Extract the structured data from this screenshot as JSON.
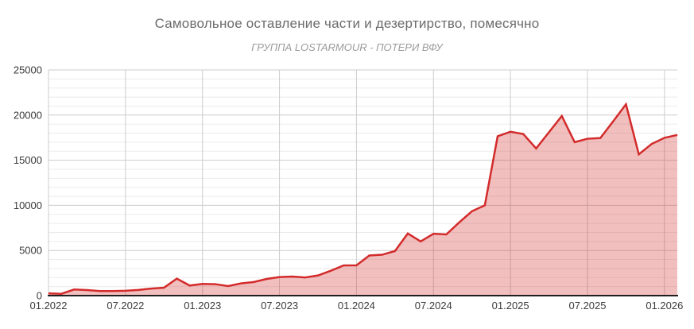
{
  "chart_data": {
    "type": "area",
    "title": "Самовольное оставление части и дезертирство, помесячно",
    "subtitle": "ГРУППА LOSTARMOUR - ПОТЕРИ ВФУ",
    "x": [
      "01.2022",
      "02.2022",
      "03.2022",
      "04.2022",
      "05.2022",
      "06.2022",
      "07.2022",
      "08.2022",
      "09.2022",
      "10.2022",
      "11.2022",
      "12.2022",
      "01.2023",
      "02.2023",
      "03.2023",
      "04.2023",
      "05.2023",
      "06.2023",
      "07.2023",
      "08.2023",
      "09.2023",
      "10.2023",
      "11.2023",
      "12.2023",
      "01.2024",
      "02.2024",
      "03.2024",
      "04.2024",
      "05.2024",
      "06.2024",
      "07.2024",
      "08.2024",
      "09.2024",
      "10.2024",
      "11.2024",
      "12.2024",
      "01.2025",
      "02.2025",
      "03.2025",
      "04.2025",
      "05.2025",
      "06.2025",
      "07.2025",
      "08.2025",
      "09.2025",
      "10.2025",
      "11.2025",
      "12.2025",
      "01.2026",
      "02.2026"
    ],
    "values": [
      250,
      200,
      680,
      620,
      510,
      510,
      540,
      630,
      780,
      880,
      1880,
      1120,
      1300,
      1270,
      1060,
      1350,
      1510,
      1850,
      2060,
      2110,
      2010,
      2230,
      2760,
      3350,
      3360,
      4450,
      4530,
      4940,
      6880,
      6000,
      6850,
      6780,
      8100,
      9350,
      10000,
      17650,
      18150,
      17900,
      16300,
      18100,
      19900,
      17000,
      17380,
      17450,
      19300,
      21200,
      15650,
      16800,
      17480,
      17800
    ],
    "x_tick_labels": [
      "01.2022",
      "07.2022",
      "01.2023",
      "07.2023",
      "01.2024",
      "07.2024",
      "01.2025",
      "07.2025",
      "01.2026"
    ],
    "x_tick_step_months": 6,
    "y_tick_labels": [
      "0",
      "5000",
      "10000",
      "15000",
      "20000",
      "25000"
    ],
    "y_ticks": [
      0,
      5000,
      10000,
      15000,
      20000,
      25000
    ],
    "y_minor_step": 1000,
    "ylim": [
      0,
      25000
    ],
    "grid": true,
    "legend": "none",
    "colors": {
      "line": "#d32b2b",
      "fill": "#d32b2b",
      "fill_opacity": 0.3,
      "grid_major": "#cccccc",
      "grid_minor": "#ebebeb",
      "axis": "#1f1f1f",
      "tick_label": "#3b3b3b",
      "title": "#6b6b6b",
      "subtitle": "#9c9c9c"
    }
  }
}
